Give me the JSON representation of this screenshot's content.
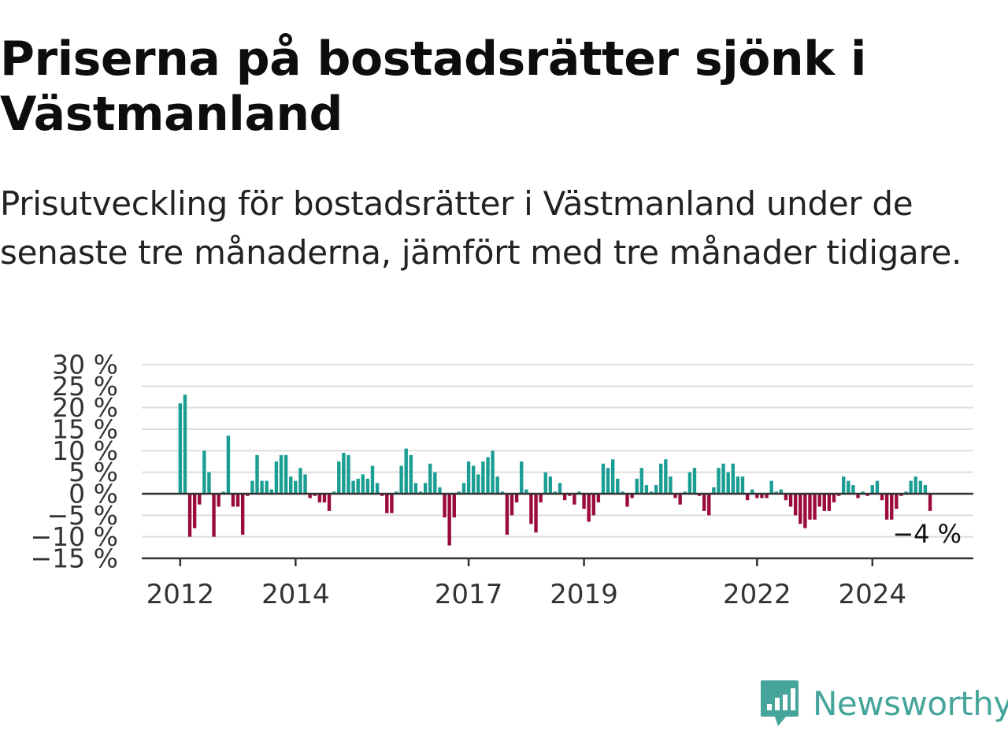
{
  "title": "Priserna på bostadsrätter sjönk i Västmanland",
  "subtitle": "Prisutveckling för bostadsrätter i Västmanland under de senaste tre månaderna, jämfört med tre månader tidigare.",
  "logo": {
    "name": "Newsworthy"
  },
  "colors": {
    "positive": "#1a9e93",
    "negative": "#9b0a3d",
    "grid": "#dddddd",
    "axis": "#333333",
    "logo": "#45a59a"
  },
  "chart_data": {
    "type": "bar",
    "y_tick_labels": [
      "30 %",
      "25 %",
      "20 %",
      "15 %",
      "10 %",
      "5 %",
      "0 %",
      "−5 %",
      "−10 %",
      "−15 %"
    ],
    "y_ticks": [
      30,
      25,
      20,
      15,
      10,
      5,
      0,
      -5,
      -10,
      -15
    ],
    "ylim": [
      -15,
      30
    ],
    "x_tick_labels": [
      "2012",
      "2014",
      "2017",
      "2019",
      "2022",
      "2024"
    ],
    "x_tick_positions": [
      "2012-01",
      "2014-01",
      "2017-01",
      "2019-01",
      "2022-01",
      "2024-01"
    ],
    "xlim": [
      "2011-05",
      "2025-10"
    ],
    "grid": true,
    "last_value_label": "−4 %",
    "start_month": "2012-01",
    "values": [
      21,
      23,
      -10,
      -8,
      -2.5,
      10,
      5,
      -10,
      -3,
      0.5,
      13.5,
      -3,
      -3,
      -9.5,
      -0.5,
      3,
      9,
      3,
      3,
      1,
      7.5,
      9,
      9,
      4,
      3,
      6,
      4.5,
      -1,
      -0.5,
      -2,
      -2,
      -4,
      0.5,
      7.5,
      9.5,
      9,
      3,
      3.5,
      4.5,
      3.5,
      6.5,
      2.5,
      -0.5,
      -4.5,
      -4.5,
      0.5,
      6.5,
      10.5,
      9,
      2.5,
      0.5,
      2.5,
      7,
      5,
      1.5,
      -5.5,
      -12,
      -5.5,
      0.5,
      2.5,
      7.5,
      6.5,
      4.5,
      7.5,
      8.5,
      10,
      4,
      0.5,
      -9.5,
      -5,
      -2,
      7.5,
      1,
      -7,
      -9,
      -2,
      5,
      4,
      0.5,
      2.5,
      -1.5,
      -0.5,
      -2.5,
      0.5,
      -3.5,
      -6.5,
      -5,
      -2,
      7,
      6,
      8,
      3.5,
      0.5,
      -3,
      -1,
      3.5,
      6,
      2,
      0.5,
      2,
      7,
      8,
      4,
      -1,
      -2.5,
      0.5,
      5,
      6,
      -0.5,
      -4,
      -5,
      1.5,
      6,
      7,
      5,
      7,
      4,
      4,
      -1.5,
      1,
      -1,
      -1,
      -1,
      3,
      0.5,
      1,
      -1.5,
      -3,
      -5,
      -7,
      -8,
      -6,
      -6,
      -3,
      -4,
      -4,
      -2,
      -0.5,
      4,
      3,
      2,
      -1,
      0.5,
      -0.5,
      2,
      3,
      -1.5,
      -6,
      -6,
      -3.5,
      -0.5,
      0.5,
      3,
      4,
      3,
      2,
      -4
    ]
  }
}
